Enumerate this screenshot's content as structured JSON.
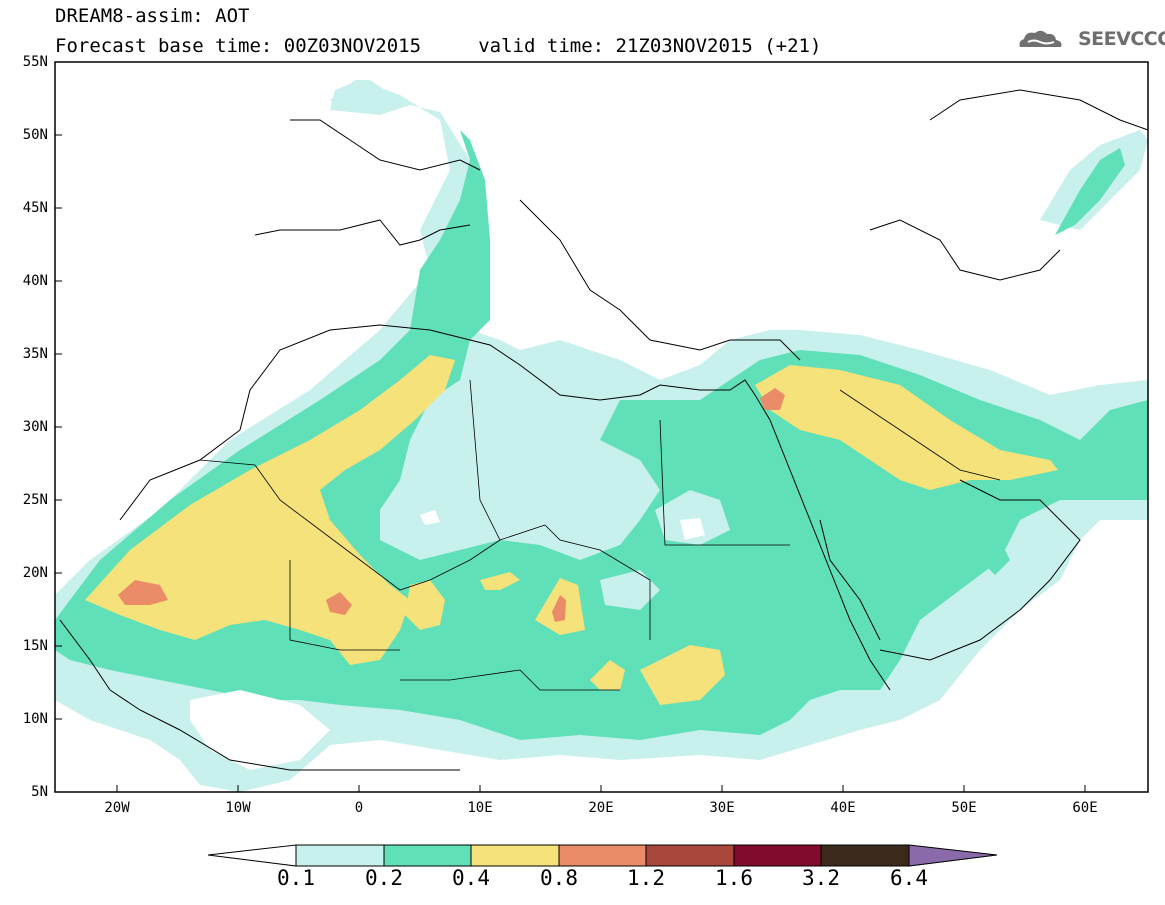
{
  "header": {
    "line1": "DREAM8-assim: AOT",
    "line2": "Forecast base time: 00Z03NOV2015     valid time: 21Z03NOV2015 (+21)",
    "logo_text": "SEEVCCC",
    "logo_icon": "cloud-icon"
  },
  "axes": {
    "lat_labels": [
      "55N",
      "50N",
      "45N",
      "40N",
      "35N",
      "30N",
      "25N",
      "20N",
      "15N",
      "10N",
      "5N"
    ],
    "lon_labels": [
      "20W",
      "10W",
      "0",
      "10E",
      "20E",
      "30E",
      "40E",
      "50E",
      "60E"
    ],
    "lat_range": [
      5,
      55
    ],
    "lon_range": [
      -25,
      65
    ]
  },
  "colorbar": {
    "labels": [
      "0.1",
      "0.2",
      "0.4",
      "0.8",
      "1.2",
      "1.6",
      "3.2",
      "6.4"
    ],
    "colors": [
      "#ffffff",
      "#c8f0ec",
      "#5fe0b8",
      "#f5e27a",
      "#eb8c68",
      "#a8483c",
      "#820a2c",
      "#3b2a1c",
      "#8a6aa8"
    ]
  }
}
